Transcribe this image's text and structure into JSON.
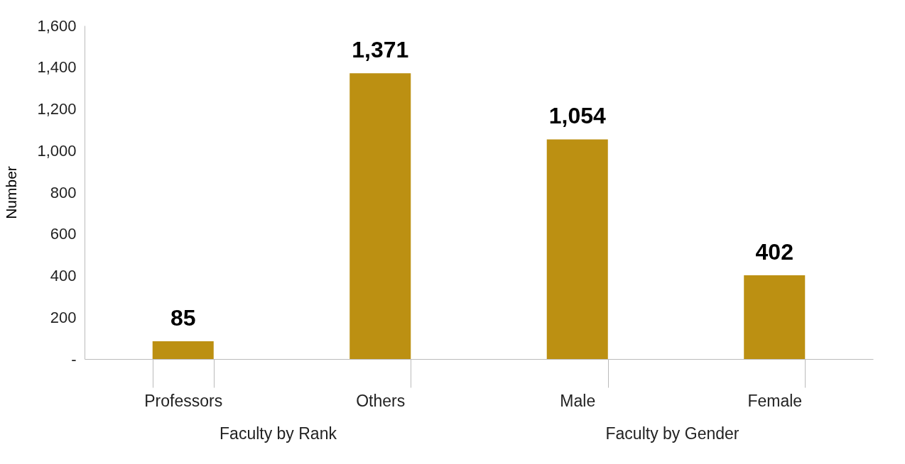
{
  "chart_data": {
    "type": "bar",
    "ylabel": "Number",
    "categories": [
      "Professors",
      "Others",
      "Male",
      "Female"
    ],
    "values": [
      85,
      1371,
      1054,
      402
    ],
    "color": "#bc9012",
    "value_labels": [
      "85",
      "1,371",
      "1,054",
      "402"
    ],
    "ylim": [
      0,
      1600
    ],
    "yticks": [
      {
        "value": 0,
        "label": "-"
      },
      200,
      400,
      600,
      800,
      {
        "value": 1000,
        "label": "1,000"
      },
      {
        "value": 1200,
        "label": "1,200"
      },
      {
        "value": 1400,
        "label": "1,400"
      },
      {
        "value": 1600,
        "label": "1,600"
      }
    ],
    "annotations": [
      "Faculty by Rank",
      "Faculty by Gender"
    ]
  }
}
